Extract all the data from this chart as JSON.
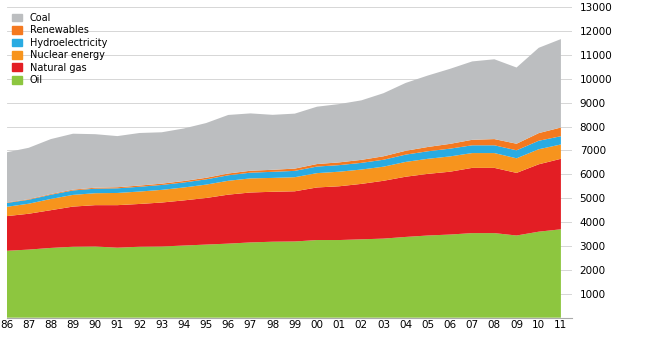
{
  "years": [
    1986,
    1987,
    1988,
    1989,
    1990,
    1991,
    1992,
    1993,
    1994,
    1995,
    1996,
    1997,
    1998,
    1999,
    2000,
    2001,
    2002,
    2003,
    2004,
    2005,
    2006,
    2007,
    2008,
    2009,
    2010,
    2011
  ],
  "oil": [
    2800,
    2850,
    2920,
    2970,
    2980,
    2930,
    2970,
    2980,
    3020,
    3060,
    3100,
    3150,
    3180,
    3190,
    3250,
    3250,
    3280,
    3310,
    3380,
    3440,
    3480,
    3540,
    3540,
    3440,
    3600,
    3700
  ],
  "natural_gas": [
    1450,
    1500,
    1580,
    1680,
    1730,
    1780,
    1790,
    1840,
    1890,
    1950,
    2050,
    2090,
    2090,
    2100,
    2200,
    2250,
    2320,
    2420,
    2520,
    2580,
    2630,
    2730,
    2730,
    2620,
    2820,
    2950
  ],
  "nuclear": [
    390,
    420,
    470,
    490,
    500,
    510,
    520,
    530,
    540,
    560,
    580,
    590,
    580,
    590,
    600,
    610,
    600,
    590,
    620,
    630,
    640,
    620,
    620,
    610,
    630,
    600
  ],
  "hydro": [
    160,
    165,
    175,
    185,
    190,
    195,
    200,
    205,
    210,
    220,
    230,
    240,
    255,
    265,
    275,
    275,
    280,
    290,
    305,
    315,
    325,
    325,
    325,
    335,
    355,
    345
  ],
  "renewables": [
    20,
    25,
    30,
    35,
    40,
    45,
    50,
    55,
    60,
    65,
    75,
    80,
    85,
    95,
    105,
    115,
    125,
    145,
    160,
    180,
    200,
    230,
    260,
    275,
    320,
    365
  ],
  "coal": [
    2100,
    2150,
    2300,
    2340,
    2240,
    2140,
    2200,
    2150,
    2200,
    2290,
    2450,
    2400,
    2300,
    2300,
    2400,
    2440,
    2490,
    2640,
    2840,
    2990,
    3140,
    3280,
    3340,
    3190,
    3570,
    3700
  ],
  "colors": {
    "oil": "#8dc63f",
    "natural_gas": "#e31e24",
    "nuclear": "#f7941d",
    "hydro": "#29abe2",
    "renewables": "#f47920",
    "coal": "#bcbec0"
  },
  "labels": {
    "coal": "Coal",
    "renewables": "Renewables",
    "hydro": "Hydroelectricity",
    "nuclear": "Nuclear energy",
    "natural_gas": "Natural gas",
    "oil": "Oil"
  },
  "ylim": [
    0,
    13000
  ],
  "yticks": [
    1000,
    2000,
    3000,
    4000,
    5000,
    6000,
    7000,
    8000,
    9000,
    10000,
    11000,
    12000,
    13000
  ],
  "bg_color": "#ffffff",
  "grid_color": "#d0d0d0",
  "figsize": [
    6.5,
    3.53
  ],
  "dpi": 100
}
